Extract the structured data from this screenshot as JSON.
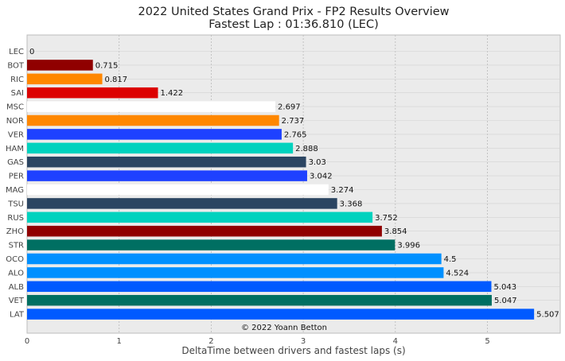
{
  "chart_data": {
    "type": "bar",
    "orientation": "horizontal",
    "title": "2022 United States Grand Prix - FP2 Results Overview",
    "subtitle": "Fastest Lap : 01:36.810 (LEC)",
    "xlabel": "DeltaTime between drivers and fastest laps (s)",
    "ylabel": "",
    "xlim": [
      0,
      5.8
    ],
    "xticks": [
      0,
      1,
      2,
      3,
      4,
      5
    ],
    "grid": true,
    "credit": "© 2022 Yoann Betton",
    "categories": [
      "LEC",
      "BOT",
      "RIC",
      "SAI",
      "MSC",
      "NOR",
      "VER",
      "HAM",
      "GAS",
      "PER",
      "MAG",
      "TSU",
      "RUS",
      "ZHO",
      "STR",
      "OCO",
      "ALO",
      "ALB",
      "VET",
      "LAT"
    ],
    "values": [
      0,
      0.715,
      0.817,
      1.422,
      2.697,
      2.737,
      2.765,
      2.888,
      3.03,
      3.042,
      3.274,
      3.368,
      3.752,
      3.854,
      3.996,
      4.5,
      4.524,
      5.043,
      5.047,
      5.507
    ],
    "value_labels": [
      "0",
      "0.715",
      "0.817",
      "1.422",
      "2.697",
      "2.737",
      "2.765",
      "2.888",
      "3.03",
      "3.042",
      "3.274",
      "3.368",
      "3.752",
      "3.854",
      "3.996",
      "4.5",
      "4.524",
      "5.043",
      "5.047",
      "5.507"
    ],
    "colors": [
      "#dc0000",
      "#900000",
      "#ff8700",
      "#dc0000",
      "#ffffff",
      "#ff8700",
      "#1e41ff",
      "#00d2be",
      "#2b4562",
      "#1e41ff",
      "#ffffff",
      "#2b4562",
      "#00d2be",
      "#900000",
      "#006f62",
      "#0090ff",
      "#0090ff",
      "#005aff",
      "#006f62",
      "#005aff"
    ]
  }
}
